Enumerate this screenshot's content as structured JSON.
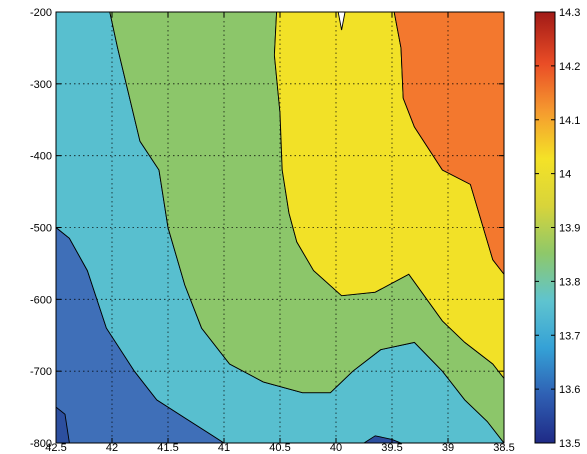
{
  "chart_data": {
    "type": "contour",
    "title": "",
    "xlabel": "",
    "ylabel": "",
    "x_axis": {
      "range": [
        42.5,
        38.5
      ],
      "reversed": true,
      "ticks": [
        42.5,
        42,
        41.5,
        41,
        40.5,
        40,
        39.5,
        39,
        38.5
      ],
      "tick_labels": [
        "42.5",
        "42",
        "41.5",
        "41",
        "40.5",
        "40",
        "39.5",
        "39",
        "38.5"
      ]
    },
    "y_axis": {
      "range": [
        -800,
        -200
      ],
      "ticks": [
        -200,
        -300,
        -400,
        -500,
        -600,
        -700,
        -800
      ],
      "tick_labels": [
        "-200",
        "-300",
        "-400",
        "-500",
        "-600",
        "-700",
        "-800"
      ]
    },
    "grid": true,
    "colorbar": {
      "placement": "right",
      "range": [
        13.5,
        14.3
      ],
      "ticks": [
        14.3,
        14.2,
        14.1,
        14,
        13.9,
        13.8,
        13.7,
        13.6,
        13.5
      ],
      "tick_labels": [
        "14.3",
        "14.2",
        "14.1",
        "14",
        "13.9",
        "13.8",
        "13.7",
        "13.6",
        "13.5"
      ],
      "colormap": [
        "#1f2a86",
        "#2f5fb3",
        "#35a1d6",
        "#5fc4cf",
        "#8ec86a",
        "#d8d43a",
        "#f4e227",
        "#f59a2f",
        "#ea4d26",
        "#a11a17"
      ]
    },
    "bands": [
      {
        "level": "13.6-13.7",
        "color": "#3f6fb8",
        "polygon": [
          [
            42.5,
            -500
          ],
          [
            42.38,
            -515
          ],
          [
            42.22,
            -560
          ],
          [
            42.05,
            -640
          ],
          [
            41.8,
            -700
          ],
          [
            41.6,
            -740
          ],
          [
            41.35,
            -765
          ],
          [
            41.1,
            -790
          ],
          [
            41.0,
            -800
          ],
          [
            42.5,
            -800
          ]
        ]
      },
      {
        "level": "13.8-13.9",
        "color": "#58bfcf",
        "polygon": [
          [
            42.5,
            -200
          ],
          [
            42.5,
            -500
          ],
          [
            42.38,
            -515
          ],
          [
            42.22,
            -560
          ],
          [
            42.05,
            -640
          ],
          [
            41.8,
            -700
          ],
          [
            41.6,
            -740
          ],
          [
            41.35,
            -765
          ],
          [
            41.1,
            -790
          ],
          [
            41.0,
            -800
          ],
          [
            38.5,
            -800
          ],
          [
            38.65,
            -770
          ],
          [
            38.85,
            -740
          ],
          [
            39.05,
            -700
          ],
          [
            39.3,
            -660
          ],
          [
            39.6,
            -670
          ],
          [
            39.85,
            -700
          ],
          [
            40.05,
            -730
          ],
          [
            40.3,
            -730
          ],
          [
            40.65,
            -715
          ],
          [
            40.95,
            -690
          ],
          [
            41.2,
            -640
          ],
          [
            41.35,
            -580
          ],
          [
            41.5,
            -500
          ],
          [
            41.58,
            -420
          ],
          [
            41.75,
            -380
          ],
          [
            41.95,
            -250
          ],
          [
            42.02,
            -200
          ]
        ]
      },
      {
        "level": "13.9-14.0",
        "color": "#8cc66a",
        "polygon": [
          [
            42.02,
            -200
          ],
          [
            41.95,
            -250
          ],
          [
            41.75,
            -380
          ],
          [
            41.58,
            -420
          ],
          [
            41.5,
            -500
          ],
          [
            41.35,
            -580
          ],
          [
            41.2,
            -640
          ],
          [
            40.95,
            -690
          ],
          [
            40.65,
            -715
          ],
          [
            40.3,
            -730
          ],
          [
            40.05,
            -730
          ],
          [
            39.85,
            -700
          ],
          [
            39.6,
            -670
          ],
          [
            39.3,
            -660
          ],
          [
            39.05,
            -700
          ],
          [
            38.85,
            -740
          ],
          [
            38.65,
            -770
          ],
          [
            38.5,
            -800
          ],
          [
            38.5,
            -710
          ],
          [
            38.6,
            -690
          ],
          [
            38.85,
            -660
          ],
          [
            39.05,
            -630
          ],
          [
            39.35,
            -565
          ],
          [
            39.65,
            -590
          ],
          [
            39.95,
            -595
          ],
          [
            40.2,
            -560
          ],
          [
            40.35,
            -520
          ],
          [
            40.42,
            -480
          ],
          [
            40.48,
            -420
          ],
          [
            40.5,
            -340
          ],
          [
            40.55,
            -260
          ],
          [
            40.53,
            -200
          ]
        ]
      },
      {
        "level": "14.0-14.1",
        "color": "#f2e127",
        "polygon": [
          [
            40.53,
            -200
          ],
          [
            40.55,
            -260
          ],
          [
            40.5,
            -340
          ],
          [
            40.48,
            -420
          ],
          [
            40.42,
            -480
          ],
          [
            40.35,
            -520
          ],
          [
            40.2,
            -560
          ],
          [
            39.95,
            -595
          ],
          [
            39.65,
            -590
          ],
          [
            39.35,
            -565
          ],
          [
            39.05,
            -630
          ],
          [
            38.85,
            -660
          ],
          [
            38.6,
            -690
          ],
          [
            38.5,
            -710
          ],
          [
            38.5,
            -565
          ],
          [
            38.6,
            -545
          ],
          [
            38.8,
            -440
          ],
          [
            39.05,
            -420
          ],
          [
            39.3,
            -360
          ],
          [
            39.4,
            -320
          ],
          [
            39.42,
            -250
          ],
          [
            39.48,
            -200
          ],
          [
            39.92,
            -200
          ],
          [
            39.95,
            -225
          ],
          [
            39.98,
            -200
          ]
        ]
      },
      {
        "level": "14.1-14.2",
        "color": "#f3782e",
        "polygon": [
          [
            39.48,
            -200
          ],
          [
            39.42,
            -250
          ],
          [
            39.4,
            -320
          ],
          [
            39.3,
            -360
          ],
          [
            39.05,
            -420
          ],
          [
            38.8,
            -440
          ],
          [
            38.6,
            -545
          ],
          [
            38.5,
            -565
          ],
          [
            38.5,
            -200
          ]
        ]
      },
      {
        "level": "13.5-13.6",
        "color": "#2c4f9f",
        "polygon": [
          [
            39.75,
            -800
          ],
          [
            39.65,
            -790
          ],
          [
            39.5,
            -795
          ],
          [
            39.42,
            -800
          ]
        ]
      },
      {
        "level": "13.5-13.6",
        "color": "#2c4f9f",
        "polygon": [
          [
            42.5,
            -750
          ],
          [
            42.42,
            -760
          ],
          [
            42.38,
            -800
          ],
          [
            42.5,
            -800
          ]
        ]
      }
    ]
  }
}
